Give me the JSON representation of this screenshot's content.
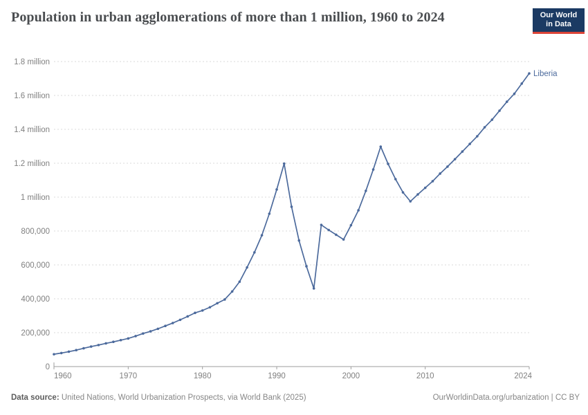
{
  "header": {
    "title": "Population in urban agglomerations of more than 1 million, 1960 to 2024",
    "logo": {
      "line1": "Our World",
      "line2": "in Data"
    }
  },
  "chart_data": {
    "type": "line",
    "title": "Population in urban agglomerations of more than 1 million, 1960 to 2024",
    "xlabel": "",
    "ylabel": "",
    "xlim": [
      1960,
      2024
    ],
    "ylim": [
      0,
      1800000
    ],
    "grid": "horizontal-dashed",
    "legend_position": "end-of-line-label",
    "x": [
      1960,
      1961,
      1962,
      1963,
      1964,
      1965,
      1966,
      1967,
      1968,
      1969,
      1970,
      1971,
      1972,
      1973,
      1974,
      1975,
      1976,
      1977,
      1978,
      1979,
      1980,
      1981,
      1982,
      1983,
      1984,
      1985,
      1986,
      1987,
      1988,
      1989,
      1990,
      1991,
      1992,
      1993,
      1994,
      1995,
      1996,
      1997,
      1998,
      1999,
      2000,
      2001,
      2002,
      2003,
      2004,
      2005,
      2006,
      2007,
      2008,
      2009,
      2010,
      2011,
      2012,
      2013,
      2014,
      2015,
      2016,
      2017,
      2018,
      2019,
      2020,
      2021,
      2022,
      2023,
      2024
    ],
    "series": [
      {
        "name": "Liberia",
        "values": [
          73000,
          80000,
          88000,
          97000,
          108000,
          118000,
          127000,
          137000,
          146000,
          156000,
          166000,
          180000,
          195000,
          208000,
          223000,
          240000,
          257000,
          276000,
          296000,
          317000,
          331000,
          350000,
          374000,
          396000,
          443000,
          501000,
          585000,
          674000,
          775000,
          902000,
          1045000,
          1198000,
          943000,
          744000,
          592000,
          461000,
          836000,
          806000,
          778000,
          750000,
          834000,
          922000,
          1037000,
          1163000,
          1298000,
          1196000,
          1106000,
          1028000,
          975000,
          1016000,
          1055000,
          1094000,
          1139000,
          1180000,
          1224000,
          1269000,
          1314000,
          1359000,
          1412000,
          1457000,
          1510000,
          1563000,
          1610000,
          1670000,
          1730000
        ]
      }
    ],
    "yticks": [
      {
        "value": 0,
        "label": "0"
      },
      {
        "value": 200000,
        "label": "200,000"
      },
      {
        "value": 400000,
        "label": "400,000"
      },
      {
        "value": 600000,
        "label": "600,000"
      },
      {
        "value": 800000,
        "label": "800,000"
      },
      {
        "value": 1000000,
        "label": "1 million"
      },
      {
        "value": 1200000,
        "label": "1.2 million"
      },
      {
        "value": 1400000,
        "label": "1.4 million"
      },
      {
        "value": 1600000,
        "label": "1.6 million"
      },
      {
        "value": 1800000,
        "label": "1.8 million"
      }
    ],
    "xticks": [
      {
        "value": 1960,
        "label": "1960"
      },
      {
        "value": 1970,
        "label": "1970"
      },
      {
        "value": 1980,
        "label": "1980"
      },
      {
        "value": 1990,
        "label": "1990"
      },
      {
        "value": 2000,
        "label": "2000"
      },
      {
        "value": 2010,
        "label": "2010"
      },
      {
        "value": 2024,
        "label": "2024"
      }
    ]
  },
  "footer": {
    "datasource_label": "Data source:",
    "datasource_text": " United Nations, World Urbanization Prospects, via World Bank (2025)",
    "attribution": "OurWorldinData.org/urbanization | CC BY"
  },
  "colors": {
    "line": "#4c6a9c",
    "grid": "#d9d9d9",
    "axis": "#9e9e9e",
    "tick_label": "#808080",
    "title": "#4a4d50",
    "logo_bg": "#1b3a63",
    "logo_accent": "#dc4437",
    "footer": "#868686"
  }
}
